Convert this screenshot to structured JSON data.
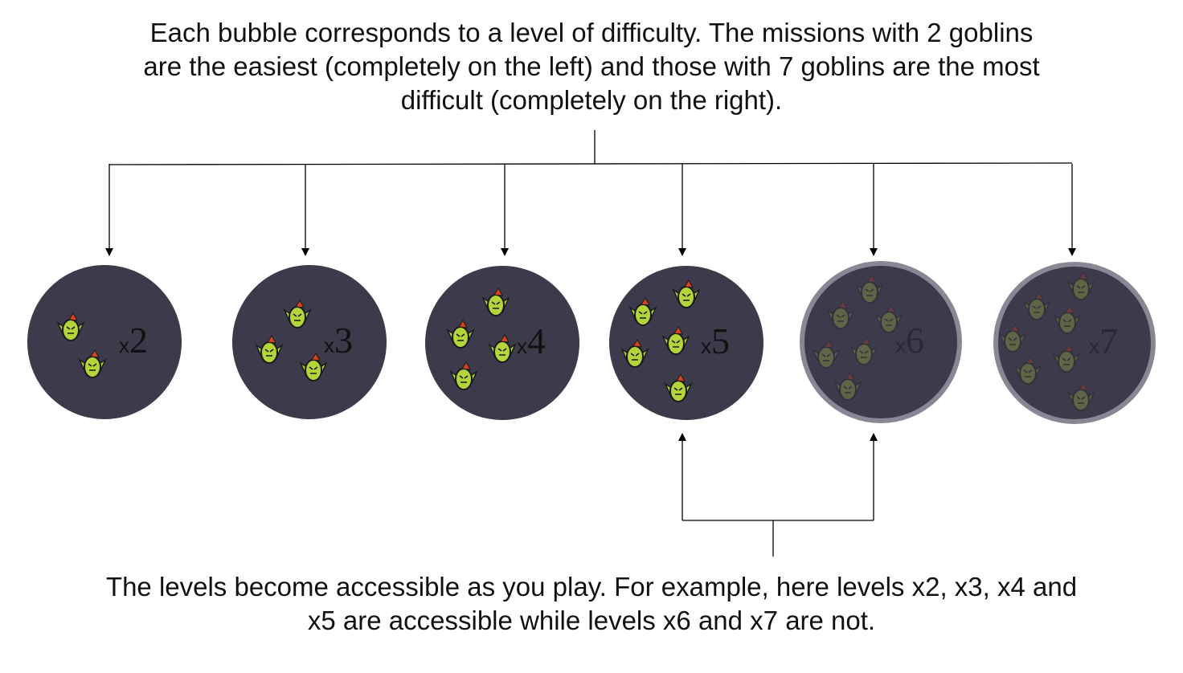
{
  "top_caption": {
    "line1": "Each bubble corresponds to a level of difficulty. The missions with 2 goblins",
    "line2": "are the easiest (completely on the left) and those with 7 goblins are the most",
    "line3": "difficult (completely on the right)."
  },
  "bottom_caption": {
    "line1": "The levels become accessible as you play. For example, here levels x2, x3, x4 and",
    "line2": "x5 are accessible while levels x6 and x7 are not."
  },
  "colors": {
    "bubble_fill": "#3d3a4b",
    "locked_ring": "#8a8794",
    "goblin_body": "#b4d43c",
    "goblin_outline": "#1a1a1a",
    "goblin_crest": "#d8431e",
    "arrow": "#000000"
  },
  "levels": [
    {
      "id": "x2",
      "x_label": "x",
      "count_label": "2",
      "goblins": 2,
      "accessible": true
    },
    {
      "id": "x3",
      "x_label": "x",
      "count_label": "3",
      "goblins": 3,
      "accessible": true
    },
    {
      "id": "x4",
      "x_label": "x",
      "count_label": "4",
      "goblins": 4,
      "accessible": true
    },
    {
      "id": "x5",
      "x_label": "x",
      "count_label": "5",
      "goblins": 5,
      "accessible": true
    },
    {
      "id": "x6",
      "x_label": "x",
      "count_label": "6",
      "goblins": 6,
      "accessible": false
    },
    {
      "id": "x7",
      "x_label": "x",
      "count_label": "7",
      "goblins": 7,
      "accessible": false
    }
  ],
  "icons": {
    "goblin": "goblin-icon",
    "arrow": "arrow-down-icon"
  }
}
